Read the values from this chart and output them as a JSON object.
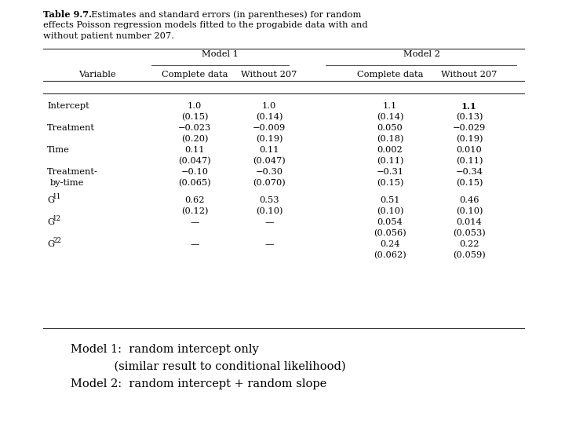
{
  "title_bold": "Table 9.7.",
  "title_rest_parts": [
    "  Estimates and standard errors (in parentheses) for random",
    "effects Poisson regression models fitted to the progabide data with and",
    "without patient number 207."
  ],
  "model1_label": "Model 1",
  "model2_label": "Model 2",
  "col_headers": [
    "Variable",
    "Complete data",
    "Without 207",
    "Complete data",
    "Without 207"
  ],
  "rows": [
    {
      "variable": "Intercept",
      "variable_lines": 1,
      "m1_cd": "1.0",
      "m1_cd_se": "(0.15)",
      "m1_w207": "1.0",
      "m1_w207_se": "(0.14)",
      "m2_cd": "1.1",
      "m2_cd_se": "(0.14)",
      "m2_w207": "1.1",
      "m2_w207_se": "(0.13)",
      "m2_w207_bold": true
    },
    {
      "variable": "Treatment",
      "variable_lines": 1,
      "m1_cd": "−0.023",
      "m1_cd_se": "(0.20)",
      "m1_w207": "−0.009",
      "m1_w207_se": "(0.19)",
      "m2_cd": "0.050",
      "m2_cd_se": "(0.18)",
      "m2_w207": "−0.029",
      "m2_w207_se": "(0.19)",
      "m2_w207_bold": false
    },
    {
      "variable": "Time",
      "variable_lines": 1,
      "m1_cd": "0.11",
      "m1_cd_se": "(0.047)",
      "m1_w207": "0.11",
      "m1_w207_se": "(0.047)",
      "m2_cd": "0.002",
      "m2_cd_se": "(0.11)",
      "m2_w207": "0.010",
      "m2_w207_se": "(0.11)",
      "m2_w207_bold": false
    },
    {
      "variable": "Treatment-",
      "variable_line2": "by-time",
      "variable_lines": 2,
      "m1_cd": "−0.10",
      "m1_cd_se": "(0.065)",
      "m1_w207": "−0.30",
      "m1_w207_se": "(0.070)",
      "m2_cd": "−0.31",
      "m2_cd_se": "(0.15)",
      "m2_w207": "−0.34",
      "m2_w207_se": "(0.15)",
      "m2_w207_bold": false
    },
    {
      "variable": "G_11",
      "variable_lines": 1,
      "m1_cd": "0.62",
      "m1_cd_se": "(0.12)",
      "m1_w207": "0.53",
      "m1_w207_se": "(0.10)",
      "m2_cd": "0.51",
      "m2_cd_se": "(0.10)",
      "m2_w207": "0.46",
      "m2_w207_se": "(0.10)",
      "m2_w207_bold": false
    },
    {
      "variable": "G_12",
      "variable_lines": 1,
      "m1_cd": "—",
      "m1_cd_se": "",
      "m1_w207": "—",
      "m1_w207_se": "",
      "m2_cd": "0.054",
      "m2_cd_se": "(0.056)",
      "m2_w207": "0.014",
      "m2_w207_se": "(0.053)",
      "m2_w207_bold": false
    },
    {
      "variable": "G_22",
      "variable_lines": 1,
      "m1_cd": "—",
      "m1_cd_se": "",
      "m1_w207": "—",
      "m1_w207_se": "",
      "m2_cd": "0.24",
      "m2_cd_se": "(0.062)",
      "m2_w207": "0.22",
      "m2_w207_se": "(0.059)",
      "m2_w207_bold": false
    }
  ],
  "footer": [
    "Model 1:  random intercept only",
    "            (similar result to conditional likelihood)",
    "Model 2:  random intercept + random slope"
  ],
  "bg_color": "#ffffff",
  "text_color": "#000000",
  "line_color": "#333333",
  "font_family": "DejaVu Serif",
  "font_size_title": 8.2,
  "font_size_table": 8.2,
  "font_size_footer": 10.5,
  "fig_width": 7.2,
  "fig_height": 5.4,
  "dpi": 100
}
